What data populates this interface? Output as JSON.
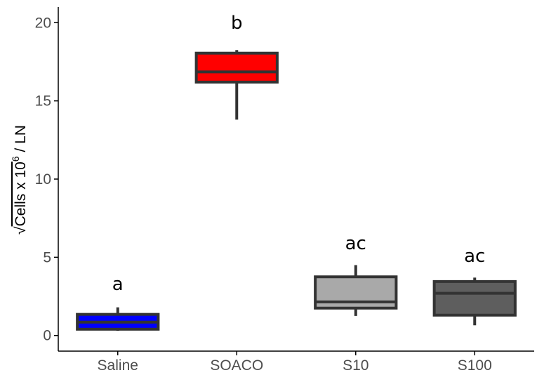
{
  "chart_data": {
    "type": "box",
    "ylabel": {
      "radical": "√",
      "pre": "Cells x 10",
      "superscript": "6",
      "post": " / LN"
    },
    "ylim": [
      -1.0,
      21.0
    ],
    "yticks": [
      "0",
      "5",
      "10",
      "15",
      "20"
    ],
    "ytick_values": [
      0,
      5,
      10,
      15,
      20
    ],
    "grid": false,
    "legend": "none",
    "categories": [
      "Saline",
      "SOACO",
      "S10",
      "S100"
    ],
    "boxes": [
      {
        "category": "Saline",
        "whisker_low": 0.3,
        "q1": 0.4,
        "median": 0.85,
        "q3": 1.35,
        "whisker_high": 1.8,
        "color": "#0000ff",
        "significance": "a"
      },
      {
        "category": "SOACO",
        "whisker_low": 13.8,
        "q1": 16.2,
        "median": 16.85,
        "q3": 18.05,
        "whisker_high": 18.25,
        "color": "#ff0000",
        "significance": "b"
      },
      {
        "category": "S10",
        "whisker_low": 1.25,
        "q1": 1.75,
        "median": 2.15,
        "q3": 3.75,
        "whisker_high": 4.5,
        "color": "#a9a9a9",
        "significance": "ac"
      },
      {
        "category": "S100",
        "whisker_low": 0.65,
        "q1": 1.3,
        "median": 2.7,
        "q3": 3.45,
        "whisker_high": 3.7,
        "color": "#5e5e5e",
        "significance": "ac"
      }
    ],
    "significance_offsets": [
      1.1,
      1.35,
      1.0,
      1.0
    ],
    "box_border_color": "#333333",
    "axis_color": "#000000"
  }
}
